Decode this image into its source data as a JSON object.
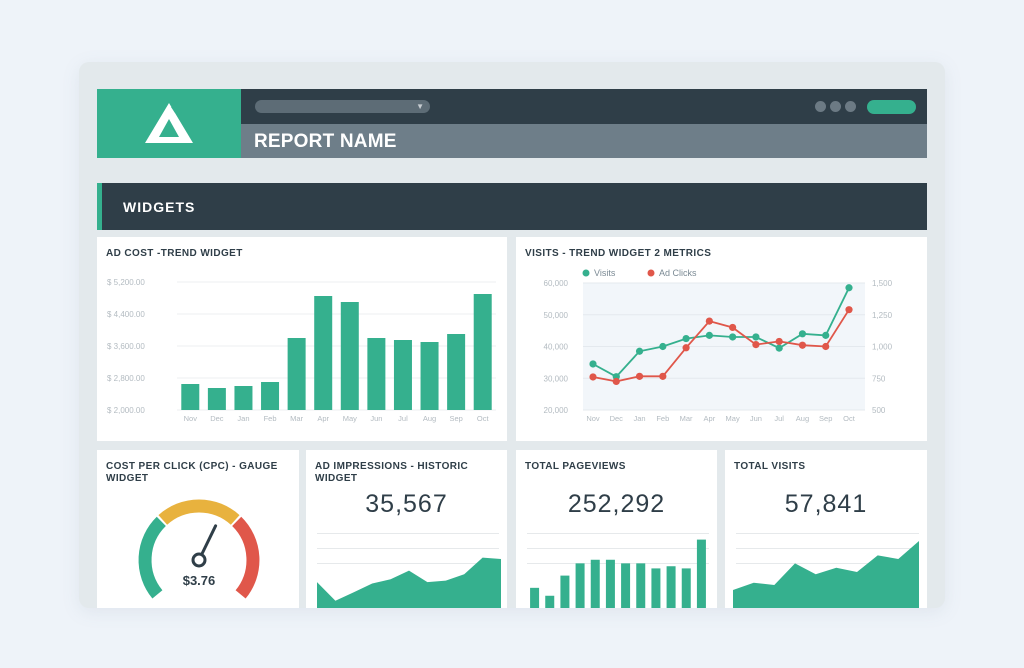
{
  "header": {
    "report_name": "REPORT NAME",
    "logo_icon": "logo-triangle-icon",
    "colors": {
      "accent": "#35b08e",
      "dark": "#2f3e48",
      "slate": "#6e7e89"
    }
  },
  "section": {
    "title": "WIDGETS"
  },
  "widgets": {
    "ad_cost": {
      "title": "AD COST -TREND WIDGET"
    },
    "visits_trend": {
      "title": "VISITS - TREND WIDGET 2 METRICS"
    },
    "cpc_gauge": {
      "title_line1": "COST PER CLICK (CPC) - GAUGE",
      "title_line2": "WIDGET",
      "value": "$3.76"
    },
    "ad_impressions": {
      "title_line1": "AD IMPRESSIONS - HISTORIC",
      "title_line2": "WIDGET",
      "value": "35,567"
    },
    "total_pageviews": {
      "title": "TOTAL PAGEVIEWS",
      "value": "252,292"
    },
    "total_visits": {
      "title": "TOTAL VISITS",
      "value": "57,841"
    }
  },
  "chart_data": [
    {
      "type": "bar",
      "title": "AD COST -TREND WIDGET",
      "categories": [
        "Nov",
        "Dec",
        "Jan",
        "Feb",
        "Mar",
        "Apr",
        "May",
        "Jun",
        "Jul",
        "Aug",
        "Sep",
        "Oct"
      ],
      "values": [
        2650,
        2550,
        2600,
        2700,
        3800,
        4850,
        4700,
        3800,
        3750,
        3700,
        3900,
        4900
      ],
      "y_ticks": [
        "$ 5,200.00",
        "$ 4,400.00",
        "$ 3,600.00",
        "$ 2,800.00",
        "$ 2,000.00"
      ],
      "ylim": [
        2000,
        5200
      ],
      "color": "#35b08e"
    },
    {
      "type": "line",
      "title": "VISITS - TREND WIDGET 2 METRICS",
      "categories": [
        "Nov",
        "Dec",
        "Jan",
        "Feb",
        "Mar",
        "Apr",
        "May",
        "Jun",
        "Jul",
        "Aug",
        "Sep",
        "Oct"
      ],
      "series": [
        {
          "name": "Visits",
          "axis": "left",
          "color": "#35b08e",
          "values": [
            34500,
            30500,
            38500,
            40000,
            42500,
            43500,
            43000,
            43000,
            39500,
            44000,
            43500,
            58500
          ]
        },
        {
          "name": "Ad Clicks",
          "axis": "right",
          "color": "#e0574a",
          "values": [
            760,
            725,
            765,
            765,
            990,
            1200,
            1150,
            1015,
            1040,
            1010,
            1000,
            1290
          ]
        }
      ],
      "y_left_ticks": [
        "60,000",
        "50,000",
        "40,000",
        "30,000",
        "20,000"
      ],
      "y_right_ticks": [
        "1,500",
        "1,250",
        "1,000",
        "750",
        "500"
      ],
      "ylim_left": [
        20000,
        60000
      ],
      "ylim_right": [
        500,
        1500
      ],
      "legend": "top-left"
    },
    {
      "type": "gauge",
      "title": "COST PER CLICK (CPC) - GAUGE WIDGET",
      "value": 3.76,
      "needle_fraction": 0.6,
      "segments": [
        {
          "color": "#35b08e"
        },
        {
          "color": "#e8b23e"
        },
        {
          "color": "#e0574a"
        }
      ]
    },
    {
      "type": "area",
      "title": "AD IMPRESSIONS - HISTORIC WIDGET",
      "values": [
        36,
        10,
        22,
        34,
        40,
        52,
        36,
        38,
        47,
        70,
        68
      ],
      "ylim": [
        0,
        100
      ],
      "color": "#35b08e"
    },
    {
      "type": "bar",
      "title": "TOTAL PAGEVIEWS",
      "values": [
        28,
        17,
        45,
        62,
        67,
        67,
        62,
        62,
        55,
        58,
        55,
        95
      ],
      "ylim": [
        0,
        100
      ],
      "color": "#35b08e"
    },
    {
      "type": "area",
      "title": "TOTAL VISITS",
      "values": [
        25,
        35,
        32,
        62,
        47,
        56,
        50,
        73,
        68,
        93
      ],
      "ylim": [
        0,
        100
      ],
      "color": "#35b08e"
    }
  ]
}
